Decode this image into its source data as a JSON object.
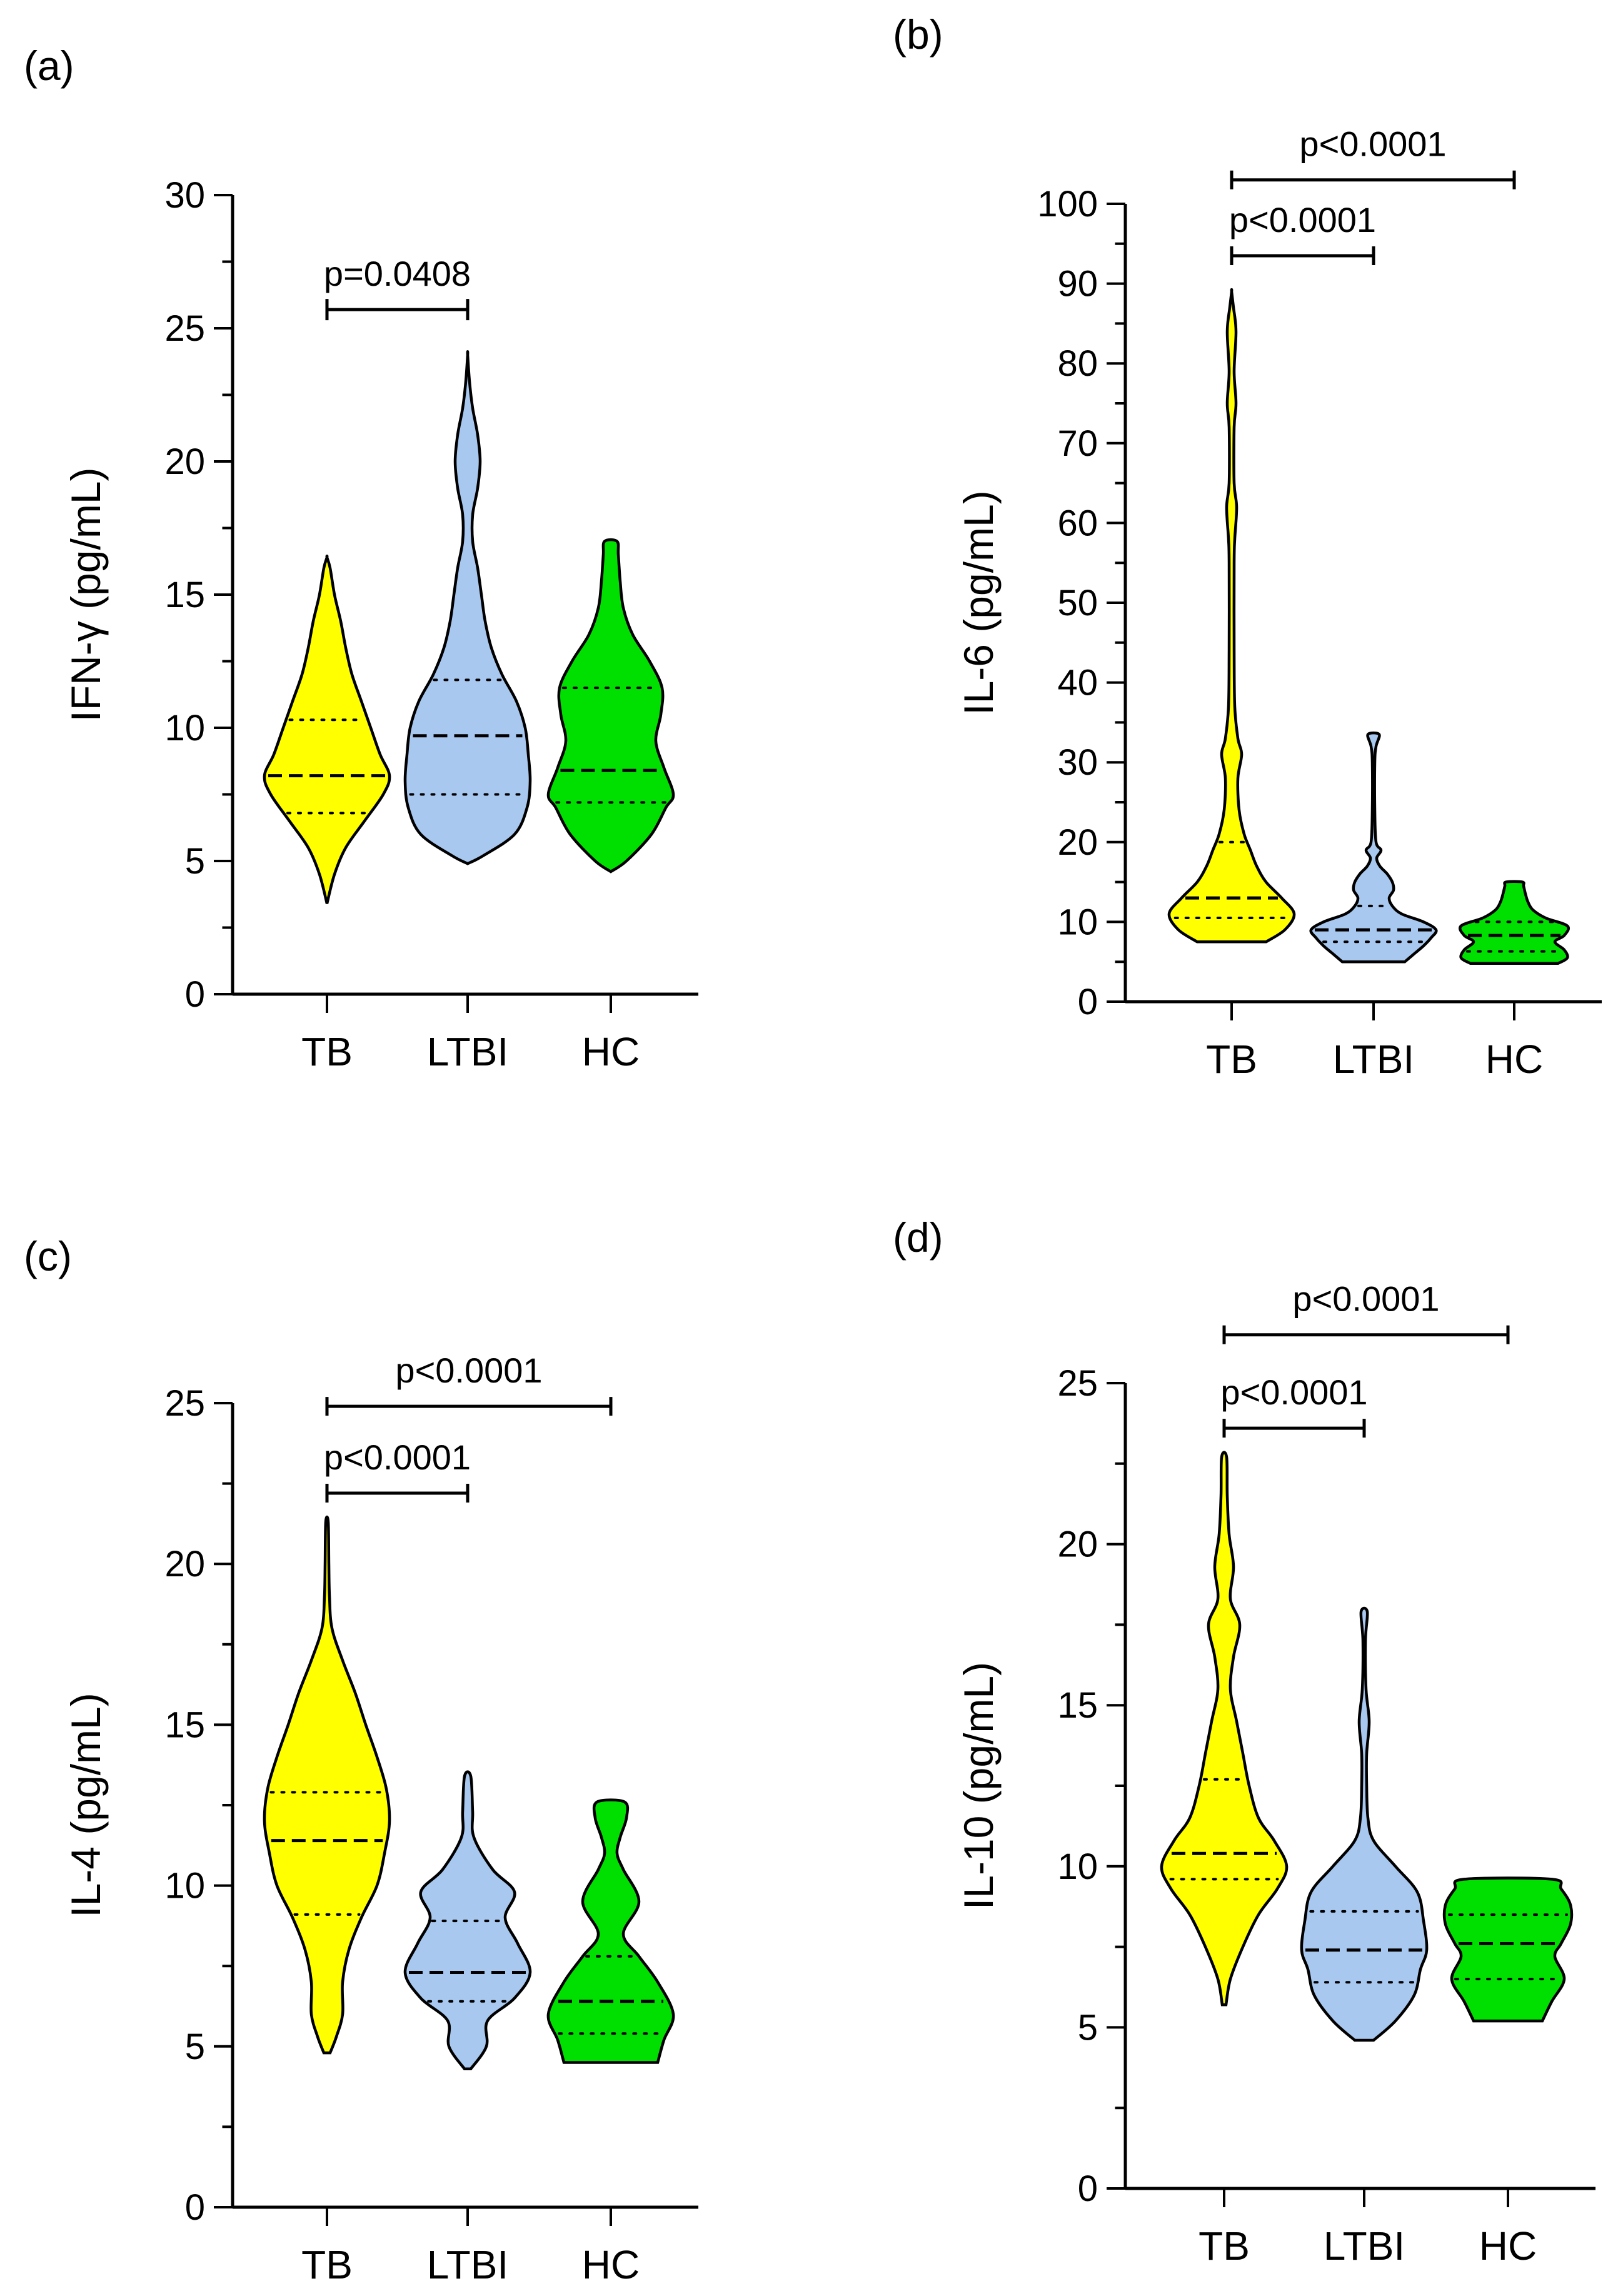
{
  "colors": {
    "TB": "#ffff00",
    "LTBI": "#a8c8f0",
    "HC": "#00e000",
    "axis": "#000000"
  },
  "chart_data": [
    {
      "type": "violin",
      "panel": "(a)",
      "ylabel": "IFN-γ  (pg/mL)",
      "ylim": [
        0,
        30
      ],
      "yticks": [
        0,
        5,
        10,
        15,
        20,
        25,
        30
      ],
      "categories": [
        "TB",
        "LTBI",
        "HC"
      ],
      "series": [
        {
          "name": "TB",
          "min": 3.4,
          "q1": 6.8,
          "median": 8.2,
          "q3": 10.3,
          "max": 16.4,
          "density": [
            [
              3.4,
              0
            ],
            [
              4.5,
              0.12
            ],
            [
              5.5,
              0.3
            ],
            [
              6.5,
              0.6
            ],
            [
              7.5,
              0.9
            ],
            [
              8.2,
              1
            ],
            [
              9,
              0.85
            ],
            [
              10,
              0.7
            ],
            [
              11,
              0.55
            ],
            [
              12,
              0.4
            ],
            [
              13,
              0.3
            ],
            [
              14,
              0.22
            ],
            [
              15,
              0.12
            ],
            [
              16,
              0.05
            ],
            [
              16.4,
              0
            ]
          ]
        },
        {
          "name": "LTBI",
          "min": 4.9,
          "q1": 7.5,
          "median": 9.7,
          "q3": 11.8,
          "max": 24.0,
          "density": [
            [
              4.9,
              0
            ],
            [
              5.2,
              0.25
            ],
            [
              6,
              0.75
            ],
            [
              7,
              0.95
            ],
            [
              8,
              1
            ],
            [
              9,
              0.97
            ],
            [
              10,
              0.92
            ],
            [
              11,
              0.78
            ],
            [
              12,
              0.55
            ],
            [
              13,
              0.38
            ],
            [
              14,
              0.28
            ],
            [
              15,
              0.22
            ],
            [
              16,
              0.16
            ],
            [
              17,
              0.08
            ],
            [
              18,
              0.08
            ],
            [
              19,
              0.16
            ],
            [
              20,
              0.2
            ],
            [
              21,
              0.16
            ],
            [
              22,
              0.08
            ],
            [
              23,
              0.03
            ],
            [
              24,
              0
            ]
          ]
        },
        {
          "name": "HC",
          "min": 4.6,
          "q1": 7.2,
          "median": 8.4,
          "q3": 11.5,
          "max": 17.0,
          "density": [
            [
              4.6,
              0
            ],
            [
              5,
              0.25
            ],
            [
              6,
              0.65
            ],
            [
              7,
              0.88
            ],
            [
              7.5,
              1
            ],
            [
              8.5,
              0.85
            ],
            [
              9.5,
              0.72
            ],
            [
              10.5,
              0.8
            ],
            [
              11.5,
              0.82
            ],
            [
              12.5,
              0.62
            ],
            [
              13.5,
              0.35
            ],
            [
              14.5,
              0.2
            ],
            [
              15.5,
              0.15
            ],
            [
              16.5,
              0.12
            ],
            [
              17,
              0.1
            ]
          ]
        }
      ],
      "comparisons": [
        {
          "label": "p=0.0408",
          "from": "TB",
          "to": "LTBI",
          "level": 25.7
        }
      ]
    },
    {
      "type": "violin",
      "panel": "(b)",
      "ylabel": "IL-6  (pg/mL)",
      "ylim": [
        0,
        100
      ],
      "yticks": [
        0,
        10,
        20,
        30,
        40,
        50,
        60,
        70,
        80,
        90,
        100
      ],
      "categories": [
        "TB",
        "LTBI",
        "HC"
      ],
      "series": [
        {
          "name": "TB",
          "min": 7.5,
          "q1": 10.5,
          "median": 13.0,
          "q3": 20.0,
          "max": 89.0,
          "density": [
            [
              7.5,
              0.55
            ],
            [
              9,
              0.85
            ],
            [
              11,
              1
            ],
            [
              13,
              0.8
            ],
            [
              15,
              0.55
            ],
            [
              17,
              0.4
            ],
            [
              19,
              0.3
            ],
            [
              21,
              0.2
            ],
            [
              24,
              0.12
            ],
            [
              28,
              0.1
            ],
            [
              31,
              0.16
            ],
            [
              33,
              0.1
            ],
            [
              37,
              0.05
            ],
            [
              44,
              0.04
            ],
            [
              55,
              0.04
            ],
            [
              58,
              0.05
            ],
            [
              62,
              0.08
            ],
            [
              65,
              0.04
            ],
            [
              72,
              0.04
            ],
            [
              75,
              0.07
            ],
            [
              79,
              0.04
            ],
            [
              84,
              0.07
            ],
            [
              87,
              0.03
            ],
            [
              89,
              0
            ]
          ]
        },
        {
          "name": "LTBI",
          "min": 5.0,
          "q1": 7.5,
          "median": 9.0,
          "q3": 12.0,
          "max": 33.5,
          "density": [
            [
              5,
              0.5
            ],
            [
              6,
              0.65
            ],
            [
              7,
              0.8
            ],
            [
              8,
              0.92
            ],
            [
              9,
              1
            ],
            [
              10,
              0.8
            ],
            [
              11,
              0.45
            ],
            [
              12,
              0.3
            ],
            [
              13,
              0.25
            ],
            [
              14,
              0.32
            ],
            [
              15,
              0.3
            ],
            [
              16,
              0.22
            ],
            [
              17,
              0.1
            ],
            [
              18,
              0.05
            ],
            [
              19,
              0.12
            ],
            [
              20,
              0.04
            ],
            [
              24,
              0.02
            ],
            [
              30,
              0.02
            ],
            [
              32,
              0.04
            ],
            [
              33.5,
              0.09
            ]
          ]
        },
        {
          "name": "HC",
          "min": 4.8,
          "q1": 6.3,
          "median": 8.3,
          "q3": 10.0,
          "max": 15.0,
          "density": [
            [
              4.8,
              0.7
            ],
            [
              5.5,
              0.85
            ],
            [
              6.5,
              0.8
            ],
            [
              7.5,
              0.65
            ],
            [
              8.3,
              0.8
            ],
            [
              9.5,
              0.85
            ],
            [
              10.5,
              0.5
            ],
            [
              11.5,
              0.3
            ],
            [
              12.5,
              0.22
            ],
            [
              13.5,
              0.18
            ],
            [
              14.5,
              0.15
            ],
            [
              15,
              0.13
            ]
          ]
        }
      ],
      "comparisons": [
        {
          "label": "p<0.0001",
          "from": "TB",
          "to": "LTBI",
          "level": 93.5
        },
        {
          "label": "p<0.0001",
          "from": "TB",
          "to": "HC",
          "level": 103.0
        }
      ]
    },
    {
      "type": "violin",
      "panel": "(c)",
      "ylabel": "IL-4 (pg/mL)",
      "ylim": [
        0,
        25
      ],
      "yticks": [
        0,
        5,
        10,
        15,
        20,
        25
      ],
      "categories": [
        "TB",
        "LTBI",
        "HC"
      ],
      "series": [
        {
          "name": "TB",
          "min": 4.8,
          "q1": 9.1,
          "median": 11.4,
          "q3": 12.9,
          "max": 21.3,
          "density": [
            [
              4.8,
              0.05
            ],
            [
              5.3,
              0.15
            ],
            [
              6,
              0.25
            ],
            [
              7,
              0.25
            ],
            [
              8,
              0.35
            ],
            [
              9,
              0.55
            ],
            [
              10,
              0.8
            ],
            [
              11,
              0.92
            ],
            [
              12,
              1
            ],
            [
              13,
              0.95
            ],
            [
              14,
              0.8
            ],
            [
              15,
              0.62
            ],
            [
              16,
              0.45
            ],
            [
              17,
              0.25
            ],
            [
              18,
              0.08
            ],
            [
              19,
              0.04
            ],
            [
              20,
              0.03
            ],
            [
              21.3,
              0.02
            ]
          ]
        },
        {
          "name": "LTBI",
          "min": 4.3,
          "q1": 6.4,
          "median": 7.3,
          "q3": 8.9,
          "max": 13.4,
          "density": [
            [
              4.3,
              0.05
            ],
            [
              5,
              0.3
            ],
            [
              5.8,
              0.32
            ],
            [
              6.5,
              0.75
            ],
            [
              7.3,
              1
            ],
            [
              8.2,
              0.8
            ],
            [
              9,
              0.6
            ],
            [
              9.8,
              0.75
            ],
            [
              10.5,
              0.4
            ],
            [
              11.5,
              0.1
            ],
            [
              12.3,
              0.08
            ],
            [
              13.4,
              0.05
            ]
          ]
        },
        {
          "name": "HC",
          "min": 4.5,
          "q1": 5.4,
          "median": 6.4,
          "q3": 7.8,
          "max": 12.6,
          "density": [
            [
              4.5,
              0.75
            ],
            [
              5.2,
              0.85
            ],
            [
              6,
              1
            ],
            [
              7,
              0.75
            ],
            [
              7.8,
              0.45
            ],
            [
              8.5,
              0.2
            ],
            [
              9.5,
              0.45
            ],
            [
              10.5,
              0.2
            ],
            [
              11,
              0.1
            ],
            [
              11.5,
              0.15
            ],
            [
              12.1,
              0.25
            ],
            [
              12.6,
              0.22
            ]
          ]
        }
      ],
      "comparisons": [
        {
          "label": "p<0.0001",
          "from": "TB",
          "to": "LTBI",
          "level": 22.2
        },
        {
          "label": "p<0.0001",
          "from": "TB",
          "to": "HC",
          "level": 24.9
        }
      ]
    },
    {
      "type": "violin",
      "panel": "(d)",
      "ylabel": "IL-10 (pg/mL)",
      "ylim": [
        0,
        25
      ],
      "yticks": [
        0,
        5,
        10,
        15,
        20,
        25
      ],
      "categories": [
        "TB",
        "LTBI",
        "HC"
      ],
      "series": [
        {
          "name": "TB",
          "min": 5.7,
          "q1": 9.6,
          "median": 10.4,
          "q3": 12.7,
          "max": 22.7,
          "density": [
            [
              5.7,
              0.03
            ],
            [
              6.5,
              0.1
            ],
            [
              7.5,
              0.3
            ],
            [
              8.5,
              0.55
            ],
            [
              9.3,
              0.85
            ],
            [
              10,
              1
            ],
            [
              10.8,
              0.8
            ],
            [
              11.5,
              0.55
            ],
            [
              12.5,
              0.4
            ],
            [
              13.5,
              0.3
            ],
            [
              14.5,
              0.2
            ],
            [
              15.5,
              0.1
            ],
            [
              16.5,
              0.15
            ],
            [
              17.5,
              0.25
            ],
            [
              18.3,
              0.1
            ],
            [
              19.3,
              0.15
            ],
            [
              20.3,
              0.08
            ],
            [
              21.5,
              0.05
            ],
            [
              22.7,
              0.04
            ]
          ]
        },
        {
          "name": "LTBI",
          "min": 4.6,
          "q1": 6.4,
          "median": 7.4,
          "q3": 8.6,
          "max": 17.9,
          "density": [
            [
              4.6,
              0.15
            ],
            [
              5.2,
              0.5
            ],
            [
              6,
              0.8
            ],
            [
              6.8,
              0.9
            ],
            [
              7.4,
              1
            ],
            [
              8.3,
              0.95
            ],
            [
              9.2,
              0.85
            ],
            [
              10,
              0.5
            ],
            [
              10.8,
              0.15
            ],
            [
              11.5,
              0.06
            ],
            [
              12.5,
              0.04
            ],
            [
              13.5,
              0.04
            ],
            [
              14.5,
              0.08
            ],
            [
              15.5,
              0.03
            ],
            [
              17,
              0.02
            ],
            [
              17.9,
              0.05
            ]
          ]
        },
        {
          "name": "HC",
          "min": 5.2,
          "q1": 6.5,
          "median": 7.6,
          "q3": 8.5,
          "max": 9.6,
          "density": [
            [
              5.2,
              0.55
            ],
            [
              5.8,
              0.7
            ],
            [
              6.5,
              0.9
            ],
            [
              7.2,
              0.75
            ],
            [
              7.6,
              0.85
            ],
            [
              8.2,
              1
            ],
            [
              8.8,
              1
            ],
            [
              9.3,
              0.85
            ],
            [
              9.6,
              0.7
            ]
          ]
        }
      ],
      "comparisons": [
        {
          "label": "p<0.0001",
          "from": "TB",
          "to": "LTBI",
          "level": 23.6
        },
        {
          "label": "p<0.0001",
          "from": "TB",
          "to": "HC",
          "level": 26.5
        }
      ]
    }
  ]
}
